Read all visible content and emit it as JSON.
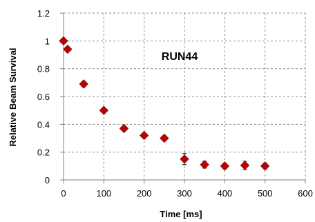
{
  "chart_data": {
    "type": "scatter",
    "title": "",
    "annotation": "RUN44",
    "xlabel": "Time [ms]",
    "ylabel": "Relative Beam Survival",
    "xlim": [
      0,
      600
    ],
    "ylim": [
      0,
      1.2
    ],
    "x_ticks": [
      "0",
      "100",
      "200",
      "300",
      "400",
      "500",
      "600"
    ],
    "y_ticks": [
      "0",
      "0.2",
      "0.4",
      "0.6",
      "0.8",
      "1",
      "1.2"
    ],
    "grid": true,
    "legend": "none",
    "marker": "diamond",
    "marker_color": "#c00000",
    "marker_edge_color": "#7f1010",
    "series": [
      {
        "x": [
          0,
          10,
          50,
          100,
          150,
          200,
          250,
          300,
          350,
          400,
          450,
          500
        ],
        "y": [
          1.0,
          0.94,
          0.69,
          0.5,
          0.37,
          0.32,
          0.3,
          0.15,
          0.11,
          0.1,
          0.105,
          0.1
        ],
        "err": [
          0.01,
          0.01,
          0.02,
          0.01,
          0.01,
          0.01,
          0.01,
          0.04,
          0.025,
          0.02,
          0.03,
          0.02
        ]
      }
    ]
  }
}
